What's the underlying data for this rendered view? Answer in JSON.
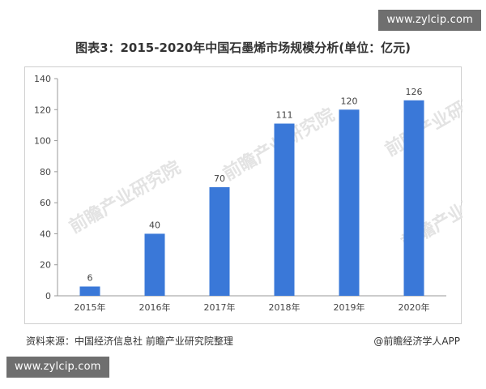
{
  "badges": {
    "top": "www.zylcip.com",
    "bottom": "www.zylcip.com"
  },
  "source_note": "资料来源：中国经济信息社 前瞻产业研究院整理",
  "credit": "@前瞻经济学人APP",
  "watermark": "前瞻产业研究院",
  "colors": {
    "bar": "#3a78d8",
    "axis": "#999999",
    "text": "#444444"
  },
  "chart_data": {
    "type": "bar",
    "title": "图表3：2015-2020年中国石墨烯市场规模分析(单位：亿元)",
    "categories": [
      "2015年",
      "2016年",
      "2017年",
      "2018年",
      "2019年",
      "2020年"
    ],
    "values": [
      6,
      40,
      70,
      111,
      120,
      126
    ],
    "data_labels": [
      "6",
      "40",
      "70",
      "111",
      "120",
      "126"
    ],
    "yticks": [
      0,
      20,
      40,
      60,
      80,
      100,
      120,
      140
    ],
    "ylim": [
      0,
      140
    ],
    "xlabel": "",
    "ylabel": "",
    "grid": false
  }
}
